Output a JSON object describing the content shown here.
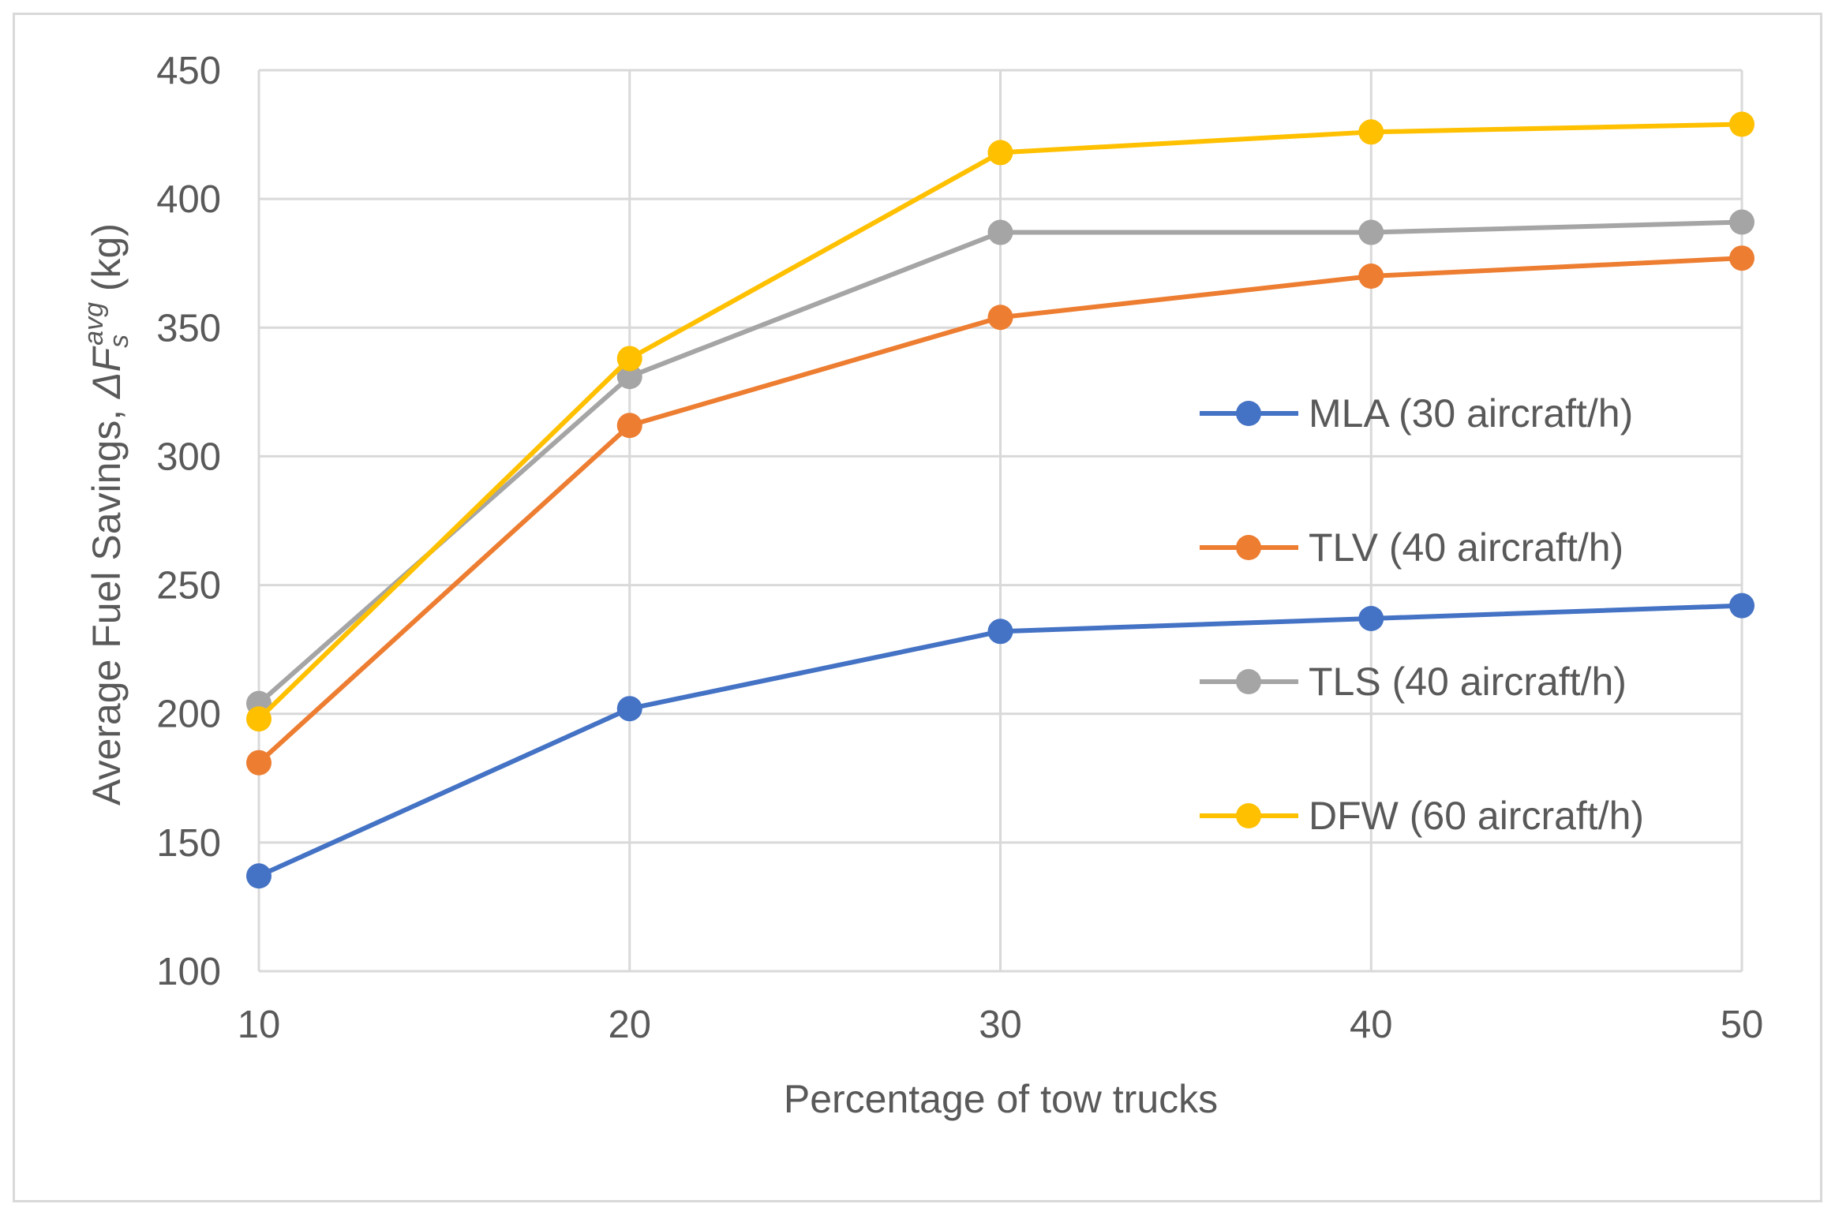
{
  "chart_data": {
    "type": "line",
    "title": "",
    "xlabel": "Percentage of tow trucks",
    "ylabel_prefix": "Average  Fuel Savings, ",
    "ylabel_symbol": "ΔF",
    "ylabel_sub": "s",
    "ylabel_sup": "avg",
    "ylabel_unit": " (kg)",
    "x": [
      10,
      20,
      30,
      40,
      50
    ],
    "xlim": [
      10,
      50
    ],
    "ylim": [
      100,
      450
    ],
    "yticks": [
      100,
      150,
      200,
      250,
      300,
      350,
      400,
      450
    ],
    "grid": true,
    "legend_position": "right",
    "series": [
      {
        "name": "MLA (30 aircraft/h)",
        "color": "#4472c4",
        "values": [
          137,
          202,
          232,
          237,
          242
        ]
      },
      {
        "name": "TLV (40 aircraft/h)",
        "color": "#ed7d31",
        "values": [
          181,
          312,
          354,
          370,
          377
        ]
      },
      {
        "name": "TLS (40 aircraft/h)",
        "color": "#a5a5a5",
        "values": [
          204,
          331,
          387,
          387,
          391
        ]
      },
      {
        "name": "DFW (60 aircraft/h)",
        "color": "#ffc000",
        "values": [
          198,
          338,
          418,
          426,
          429
        ]
      }
    ]
  }
}
